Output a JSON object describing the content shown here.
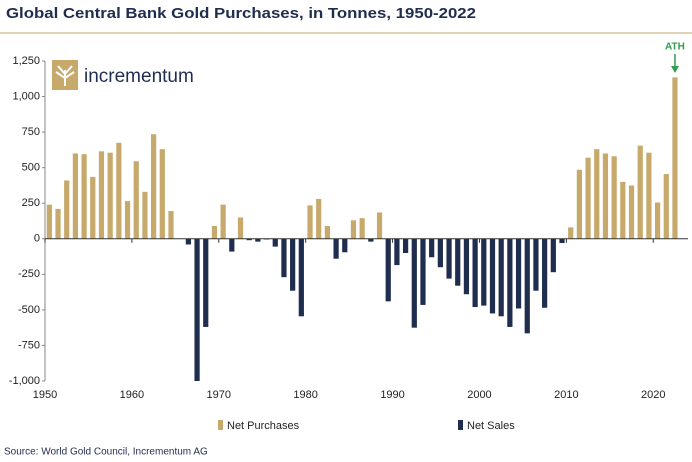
{
  "chart_data": {
    "type": "bar",
    "title": "Global Central Bank Gold Purchases, in Tonnes, 1950-2022",
    "source": "Source: World Gold Council, Incrementum AG",
    "logo_text": "incrementum",
    "annotation": {
      "text": "ATH",
      "x": 2022,
      "color": "#2e9e4f"
    },
    "x": [
      1950,
      1951,
      1952,
      1953,
      1954,
      1955,
      1956,
      1957,
      1958,
      1959,
      1960,
      1961,
      1962,
      1963,
      1964,
      1965,
      1966,
      1967,
      1968,
      1969,
      1970,
      1971,
      1972,
      1973,
      1974,
      1975,
      1976,
      1977,
      1978,
      1979,
      1980,
      1981,
      1982,
      1983,
      1984,
      1985,
      1986,
      1987,
      1988,
      1989,
      1990,
      1991,
      1992,
      1993,
      1994,
      1995,
      1996,
      1997,
      1998,
      1999,
      2000,
      2001,
      2002,
      2003,
      2004,
      2005,
      2006,
      2007,
      2008,
      2009,
      2010,
      2011,
      2012,
      2013,
      2014,
      2015,
      2016,
      2017,
      2018,
      2019,
      2020,
      2021,
      2022
    ],
    "series": [
      {
        "name": "Net Purchases",
        "color": "#c6a96b",
        "values": [
          240,
          210,
          410,
          600,
          595,
          435,
          615,
          605,
          675,
          265,
          545,
          330,
          735,
          630,
          195,
          null,
          null,
          null,
          null,
          90,
          240,
          null,
          150,
          null,
          null,
          null,
          null,
          null,
          null,
          null,
          235,
          280,
          90,
          null,
          null,
          130,
          145,
          null,
          185,
          null,
          null,
          null,
          null,
          null,
          null,
          null,
          null,
          null,
          null,
          null,
          null,
          null,
          null,
          null,
          null,
          null,
          null,
          null,
          null,
          null,
          80,
          485,
          570,
          630,
          600,
          580,
          400,
          375,
          655,
          605,
          255,
          455,
          1135
        ]
      },
      {
        "name": "Net Sales",
        "color": "#1f2d4e",
        "values": [
          null,
          null,
          null,
          null,
          null,
          null,
          null,
          null,
          null,
          null,
          null,
          null,
          null,
          null,
          null,
          null,
          -40,
          -1000,
          -620,
          null,
          null,
          -90,
          null,
          -10,
          -20,
          -5,
          -55,
          -270,
          -365,
          -545,
          null,
          null,
          null,
          -140,
          -95,
          null,
          null,
          -20,
          null,
          -440,
          -185,
          -100,
          -625,
          -465,
          -130,
          -200,
          -280,
          -330,
          -390,
          -480,
          -470,
          -525,
          -545,
          -620,
          -490,
          -665,
          -365,
          -485,
          -235,
          -30,
          null,
          null,
          null,
          null,
          null,
          null,
          null,
          null,
          null,
          null,
          null,
          null,
          null
        ]
      }
    ],
    "xlim": [
      1950,
      2024
    ],
    "xticks": [
      1950,
      1960,
      1970,
      1980,
      1990,
      2000,
      2010,
      2020
    ],
    "ylim": [
      -1000,
      1250
    ],
    "yticks": [
      {
        "value": -1000,
        "label": "-1,000"
      },
      -750,
      -500,
      -250,
      0,
      250,
      500,
      750,
      {
        "value": 1000,
        "label": "1,000"
      },
      {
        "value": 1250,
        "label": "1,250"
      }
    ]
  }
}
